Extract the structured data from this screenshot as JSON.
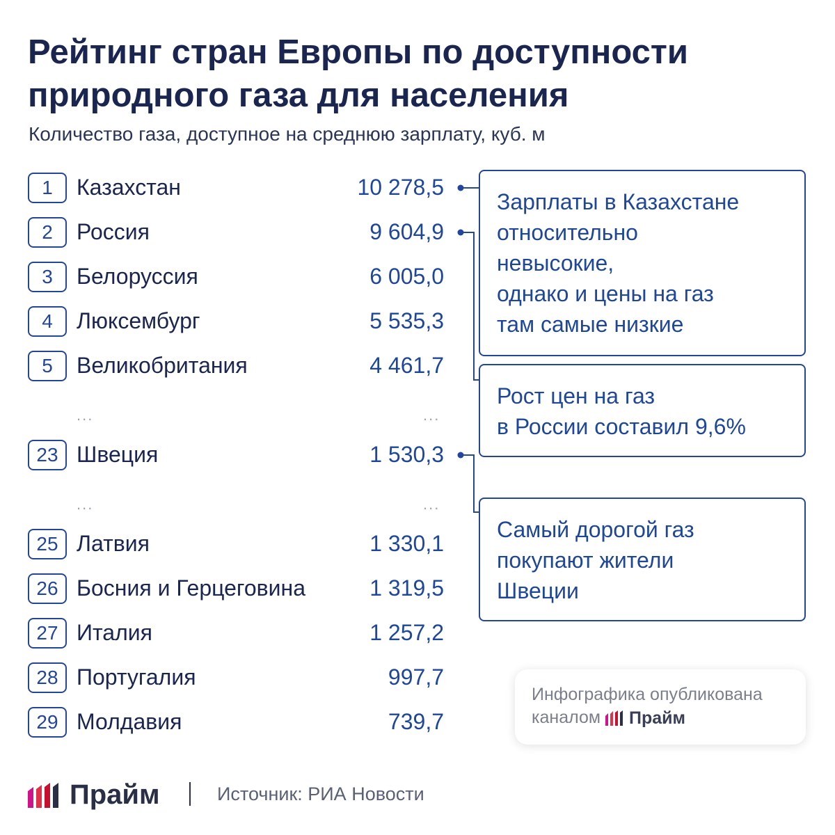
{
  "header": {
    "title_line1": "Рейтинг стран Европы по доступности",
    "title_line2": "природного газа для населения",
    "subtitle": "Количество газа, доступное на среднюю зарплату, куб. м"
  },
  "chart_data": {
    "type": "table",
    "title": "Рейтинг стран Европы по доступности природного газа для населения",
    "unit": "куб. м",
    "rows": [
      {
        "rank": "1",
        "country": "Казахстан",
        "value": 10278.5,
        "value_label": "10 278,5"
      },
      {
        "rank": "2",
        "country": "Россия",
        "value": 9604.9,
        "value_label": "9 604,9"
      },
      {
        "rank": "3",
        "country": "Белоруссия",
        "value": 6005.0,
        "value_label": "6 005,0"
      },
      {
        "rank": "4",
        "country": "Люксембург",
        "value": 5535.3,
        "value_label": "5 535,3"
      },
      {
        "rank": "5",
        "country": "Великобритания",
        "value": 4461.7,
        "value_label": "4 461,7"
      },
      {
        "rank": "23",
        "country": "Швеция",
        "value": 1530.3,
        "value_label": "1 530,3"
      },
      {
        "rank": "25",
        "country": "Латвия",
        "value": 1330.1,
        "value_label": "1 330,1"
      },
      {
        "rank": "26",
        "country": "Босния и Герцеговина",
        "value": 1319.5,
        "value_label": "1 319,5"
      },
      {
        "rank": "27",
        "country": "Италия",
        "value": 1257.2,
        "value_label": "1 257,2"
      },
      {
        "rank": "28",
        "country": "Португалия",
        "value": 997.7,
        "value_label": "997,7"
      },
      {
        "rank": "29",
        "country": "Молдавия",
        "value": 739.7,
        "value_label": "739,7"
      }
    ],
    "gap_marker": "..."
  },
  "callouts": [
    {
      "lines": [
        "Зарплаты в Казахстане",
        "относительно",
        "невысокие,",
        "однако и цены на газ",
        "там самые низкие"
      ]
    },
    {
      "lines": [
        "Рост цен на газ",
        "в России составил 9,6%"
      ]
    },
    {
      "lines": [
        "Самый дорогой газ",
        "покупают жители",
        "Швеции"
      ]
    }
  ],
  "published": {
    "line1": "Инфографика опубликована",
    "line2": "каналом",
    "brand": "Прайм"
  },
  "footer": {
    "brand": "Прайм",
    "source": "Источник: РИА Новости"
  },
  "colors": {
    "accent_blue": "#1f4799",
    "logo_red": "#c8102e",
    "logo_magenta": "#d0138a"
  }
}
